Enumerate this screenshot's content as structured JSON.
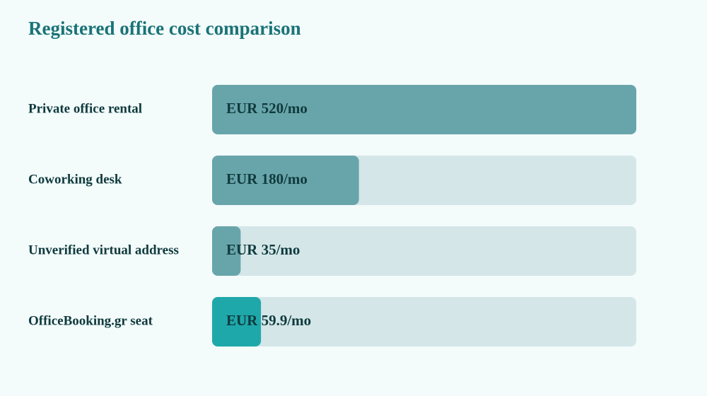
{
  "chart_data": {
    "type": "bar",
    "orientation": "horizontal",
    "title": "Registered office cost comparison",
    "categories": [
      "Private office rental",
      "Coworking desk",
      "Unverified virtual address",
      "OfficeBooking.gr seat"
    ],
    "values": [
      520,
      180,
      35,
      59.9
    ],
    "value_labels": [
      "EUR 520/mo",
      "EUR 180/mo",
      "EUR 35/mo",
      "EUR 59.9/mo"
    ],
    "colors": [
      "#68a5ab",
      "#68a5ab",
      "#68a5ab",
      "#1fa8aa"
    ],
    "track_color": "#d4e6e8"
  }
}
